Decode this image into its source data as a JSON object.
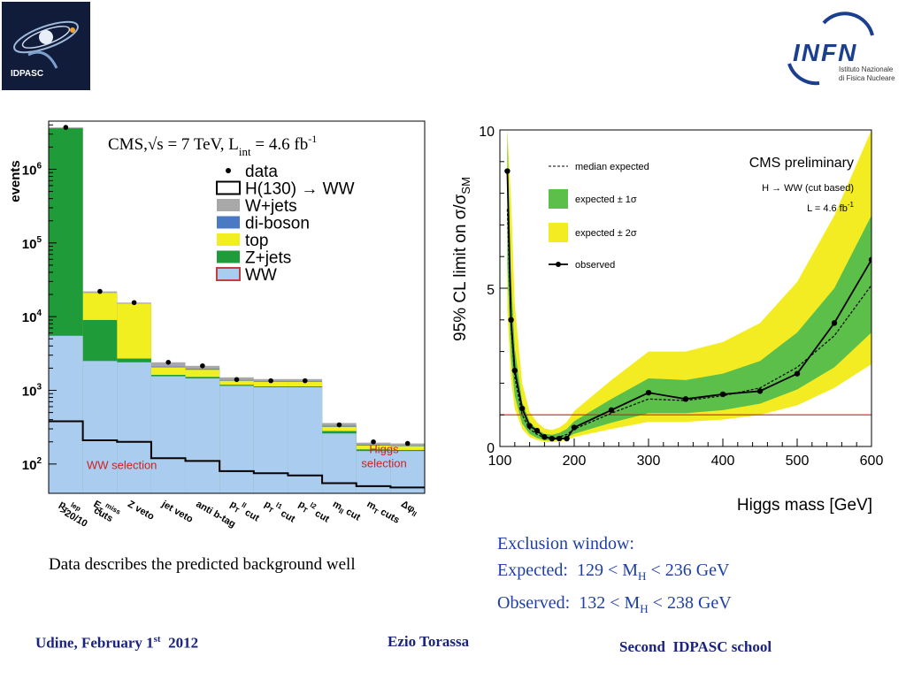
{
  "logos": {
    "idpasc_text": "IDPASC",
    "infn_text": "INFN",
    "infn_sub1": "Istituto Nazionale",
    "infn_sub2": "di Fisica Nucleare"
  },
  "colors": {
    "ww": "#aaccee",
    "zjets": "#1f9b3a",
    "top": "#f2ef20",
    "diboson": "#4a7ac4",
    "wjets": "#a8a8a8",
    "excluded": "#cc2222",
    "sigma1": "#5cbf4a",
    "sigma2": "#f4ec22",
    "exclusion_text": "#1f3fa8",
    "footer_text": "#1a237e"
  },
  "chart_data": [
    {
      "type": "bar",
      "title": "CMS,√s = 7 TeV, L",
      "title_sub": "int",
      "title_end": " = 4.6 fb",
      "title_sup": "-1",
      "ylabel": "events",
      "yscale": "log",
      "ylim": [
        40,
        4500000
      ],
      "yticks": [
        {
          "value": 100,
          "base": "10",
          "exp": "2"
        },
        {
          "value": 1000,
          "base": "10",
          "exp": "3"
        },
        {
          "value": 10000,
          "base": "10",
          "exp": "4"
        },
        {
          "value": 100000,
          "base": "10",
          "exp": "5"
        },
        {
          "value": 1000000,
          "base": "10",
          "exp": "6"
        }
      ],
      "categories": [
        "p_T^lep >20/10",
        "E_T^miss cuts",
        "Z veto",
        "jet veto",
        "anti b-tag",
        "p_T^ll cut",
        "p_T^l1 cut",
        "p_T^l2 cut",
        "m_ll cut",
        "m_T cuts",
        "Δφ_ll"
      ],
      "category_labels": [
        {
          "main": "p",
          "sub": "T",
          "sup": "lep",
          "line2": ">20/10"
        },
        {
          "main": "E",
          "sub": "T",
          "sup": "miss",
          "line2": "cuts"
        },
        {
          "main": "Z veto"
        },
        {
          "main": "jet veto"
        },
        {
          "main": "anti b-tag"
        },
        {
          "main": "p",
          "sub": "T",
          "sup": "ll",
          "tail": " cut"
        },
        {
          "main": "p",
          "sub": "T",
          "sup": "l1",
          "tail": " cut"
        },
        {
          "main": "p",
          "sub": "T",
          "sup": "l2",
          "tail": " cut"
        },
        {
          "main": "m",
          "sub": "ll",
          "tail": " cut"
        },
        {
          "main": "m",
          "sub": "T",
          "tail": " cuts"
        },
        {
          "main": "Δφ",
          "sub": "ll"
        }
      ],
      "stack_series": [
        {
          "name": "WW",
          "color_key": "ww",
          "tops": [
            5500,
            2500,
            2400,
            1550,
            1450,
            1150,
            1100,
            1100,
            260,
            150,
            150
          ]
        },
        {
          "name": "Z+jets",
          "color_key": "zjets",
          "tops": [
            3600000,
            9000,
            2700,
            1620,
            1520,
            1190,
            1130,
            1130,
            280,
            158,
            155
          ]
        },
        {
          "name": "top",
          "color_key": "top",
          "tops": [
            3600000,
            21000,
            15000,
            2050,
            1900,
            1350,
            1300,
            1300,
            320,
            178,
            175
          ]
        },
        {
          "name": "di-boson",
          "color_key": "diboson",
          "tops": [
            3600000,
            21000,
            15000,
            2100,
            1950,
            1380,
            1320,
            1320,
            330,
            182,
            178
          ]
        },
        {
          "name": "W+jets",
          "color_key": "wjets",
          "tops": [
            3700000,
            22000,
            15500,
            2400,
            2150,
            1500,
            1420,
            1420,
            360,
            195,
            190
          ]
        }
      ],
      "signal": {
        "name": "H(130) → WW",
        "values": [
          380,
          210,
          200,
          120,
          110,
          80,
          75,
          70,
          55,
          50,
          48
        ]
      },
      "data": {
        "name": "data",
        "values": [
          3700000,
          22000,
          15500,
          2400,
          2150,
          1400,
          1350,
          1350,
          340,
          200,
          190
        ]
      },
      "legend_position": "top-right",
      "annotations": [
        {
          "text": "WW selection",
          "category_index": 1,
          "value": 85
        },
        {
          "text": "Higgs",
          "category_index": 9,
          "value": 140
        },
        {
          "text": "selection",
          "category_index": 9,
          "value": 90
        }
      ]
    },
    {
      "type": "line",
      "ylabel": "95% CL limit on σ/σ",
      "ylabel_sub": "SM",
      "xlabel": "Higgs mass [GeV]",
      "xlim": [
        100,
        600
      ],
      "ylim": [
        0,
        10
      ],
      "xticks": [
        100,
        200,
        300,
        400,
        500,
        600
      ],
      "yticks": [
        0,
        5,
        10
      ],
      "header": "CMS preliminary",
      "header_sub1": "H → WW (cut based)",
      "header_sub2": "L = 4.6 fb",
      "header_sub2_sup": "-1",
      "legend_position": "top-left",
      "legend": [
        "median expected",
        "expected ± 1σ",
        "expected ± 2σ",
        "observed"
      ],
      "reference_line": 1,
      "band_x": [
        110,
        115,
        120,
        130,
        140,
        150,
        160,
        170,
        180,
        190,
        200,
        250,
        300,
        350,
        400,
        450,
        500,
        550,
        600
      ],
      "expected": [
        7.5,
        3.8,
        2.2,
        1.0,
        0.55,
        0.38,
        0.28,
        0.26,
        0.3,
        0.38,
        0.55,
        1.05,
        1.5,
        1.45,
        1.6,
        1.85,
        2.5,
        3.5,
        5.1
      ],
      "band1_low": [
        5.7,
        2.8,
        1.6,
        0.72,
        0.4,
        0.27,
        0.2,
        0.19,
        0.22,
        0.28,
        0.4,
        0.75,
        1.05,
        1.05,
        1.15,
        1.35,
        1.8,
        2.5,
        3.6
      ],
      "band1_high": [
        10.5,
        5.3,
        3.1,
        1.4,
        0.78,
        0.54,
        0.4,
        0.37,
        0.43,
        0.55,
        0.8,
        1.5,
        2.15,
        2.1,
        2.3,
        2.7,
        3.6,
        5.0,
        7.3
      ],
      "band2_low": [
        4.3,
        2.1,
        1.2,
        0.55,
        0.3,
        0.2,
        0.15,
        0.14,
        0.16,
        0.2,
        0.3,
        0.55,
        0.78,
        0.78,
        0.85,
        1.0,
        1.3,
        1.85,
        2.6
      ],
      "band2_high": [
        15,
        7.8,
        4.5,
        2.0,
        1.1,
        0.76,
        0.57,
        0.52,
        0.6,
        0.77,
        1.12,
        2.1,
        3.0,
        3.0,
        3.3,
        3.9,
        5.2,
        7.3,
        10.5
      ],
      "observed_x": [
        110,
        115,
        120,
        130,
        140,
        150,
        160,
        170,
        180,
        190,
        200,
        250,
        300,
        350,
        400,
        450,
        500,
        550,
        600
      ],
      "observed": [
        8.7,
        4.0,
        2.4,
        1.2,
        0.65,
        0.5,
        0.3,
        0.25,
        0.25,
        0.25,
        0.6,
        1.15,
        1.7,
        1.5,
        1.65,
        1.75,
        2.3,
        3.9,
        5.9
      ]
    }
  ],
  "caption_left": "Data describes the predicted background well",
  "exclusion": {
    "title": "Exclusion window:",
    "expected_label": "Expected:",
    "expected_low": "129",
    "expected_high": "236 GeV",
    "observed_label": "Observed:",
    "observed_low": "132",
    "observed_high": "238 GeV",
    "lt": "<",
    "m_symbol": "M",
    "m_sub": "H"
  },
  "footer": {
    "left_a": "Udine, February 1",
    "left_sup": "st",
    "left_b": "  2012",
    "center": "Ezio Torassa",
    "right": "Second  IDPASC school"
  }
}
